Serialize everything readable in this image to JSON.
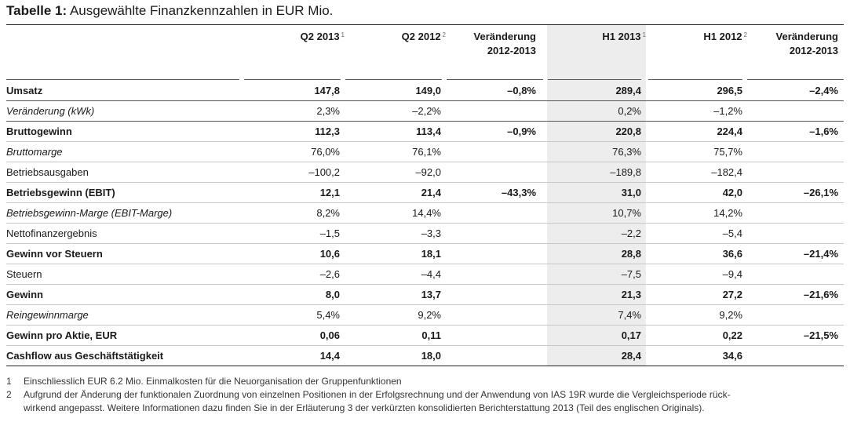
{
  "title": {
    "prefix": "Tabelle 1:",
    "text": " Ausgewählte Finanzkennzahlen in EUR Mio."
  },
  "columns": [
    {
      "line1": "Q2 2013",
      "line2": "",
      "sup": "1"
    },
    {
      "line1": "Q2 2012",
      "line2": "",
      "sup": "2"
    },
    {
      "line1": "Veränderung",
      "line2": "2012-2013",
      "sup": ""
    },
    {
      "line1": "H1 2013",
      "line2": "",
      "sup": "1"
    },
    {
      "line1": "H1 2012",
      "line2": "",
      "sup": "2"
    },
    {
      "line1": "Veränderung",
      "line2": "2012-2013",
      "sup": ""
    }
  ],
  "rows": [
    {
      "label": "Umsatz",
      "style": "bold",
      "values": [
        "147,8",
        "149,0",
        "–0,8%",
        "289,4",
        "296,5",
        "–2,4%"
      ]
    },
    {
      "label": "Veränderung (kWk)",
      "style": "italic",
      "values": [
        "2,3%",
        "–2,2%",
        "",
        "0,2%",
        "–1,2%",
        ""
      ]
    },
    {
      "label": "Bruttogewinn",
      "style": "bold",
      "values": [
        "112,3",
        "113,4",
        "–0,9%",
        "220,8",
        "224,4",
        "–1,6%"
      ]
    },
    {
      "label": "Bruttomarge",
      "style": "italic",
      "values": [
        "76,0%",
        "76,1%",
        "",
        "76,3%",
        "75,7%",
        ""
      ]
    },
    {
      "label": "Betriebsausgaben",
      "style": "normal",
      "values": [
        "–100,2",
        "–92,0",
        "",
        "–189,8",
        "–182,4",
        ""
      ]
    },
    {
      "label": "Betriebsgewinn (EBIT)",
      "style": "bold",
      "values": [
        "12,1",
        "21,4",
        "–43,3%",
        "31,0",
        "42,0",
        "–26,1%"
      ]
    },
    {
      "label": "Betriebsgewinn-Marge (EBIT-Marge)",
      "style": "italic",
      "values": [
        "8,2%",
        "14,4%",
        "",
        "10,7%",
        "14,2%",
        ""
      ]
    },
    {
      "label": "Nettofinanzergebnis",
      "style": "normal",
      "values": [
        "–1,5",
        "–3,3",
        "",
        "–2,2",
        "–5,4",
        ""
      ]
    },
    {
      "label": "Gewinn vor Steuern",
      "style": "bold",
      "values": [
        "10,6",
        "18,1",
        "",
        "28,8",
        "36,6",
        "–21,4%"
      ]
    },
    {
      "label": "Steuern",
      "style": "normal",
      "values": [
        "–2,6",
        "–4,4",
        "",
        "–7,5",
        "–9,4",
        ""
      ]
    },
    {
      "label": "Gewinn",
      "style": "bold",
      "values": [
        "8,0",
        "13,7",
        "",
        "21,3",
        "27,2",
        "–21,6%"
      ]
    },
    {
      "label": "Reingewinnmarge",
      "style": "italic",
      "values": [
        "5,4%",
        "9,2%",
        "",
        "7,4%",
        "9,2%",
        ""
      ]
    },
    {
      "label": "Gewinn pro Aktie, EUR",
      "style": "bold",
      "values": [
        "0,06",
        "0,11",
        "",
        "0,17",
        "0,22",
        "–21,5%"
      ]
    },
    {
      "label": "Cashflow aus Geschäftstätigkeit",
      "style": "bold",
      "values": [
        "14,4",
        "18,0",
        "",
        "28,4",
        "34,6",
        ""
      ]
    }
  ],
  "footnotes": [
    {
      "num": "1",
      "lines": [
        "Einschliesslich EUR 6.2 Mio. Einmalkosten für die Neuorganisation der Gruppenfunktionen"
      ]
    },
    {
      "num": "2",
      "lines": [
        "Aufgrund der Änderung der funktionalen Zuordnung von einzelnen Positionen in der Erfolgsrechnung und der Anwendung von IAS 19R wurde die Vergleichsperiode rück-",
        "wirkend angepasst. Weitere Informationen dazu finden Sie in der Erläuterung 3 der verkürzten konsolidierten Berichterstattung 2013 (Teil des englischen Originals)."
      ]
    }
  ]
}
